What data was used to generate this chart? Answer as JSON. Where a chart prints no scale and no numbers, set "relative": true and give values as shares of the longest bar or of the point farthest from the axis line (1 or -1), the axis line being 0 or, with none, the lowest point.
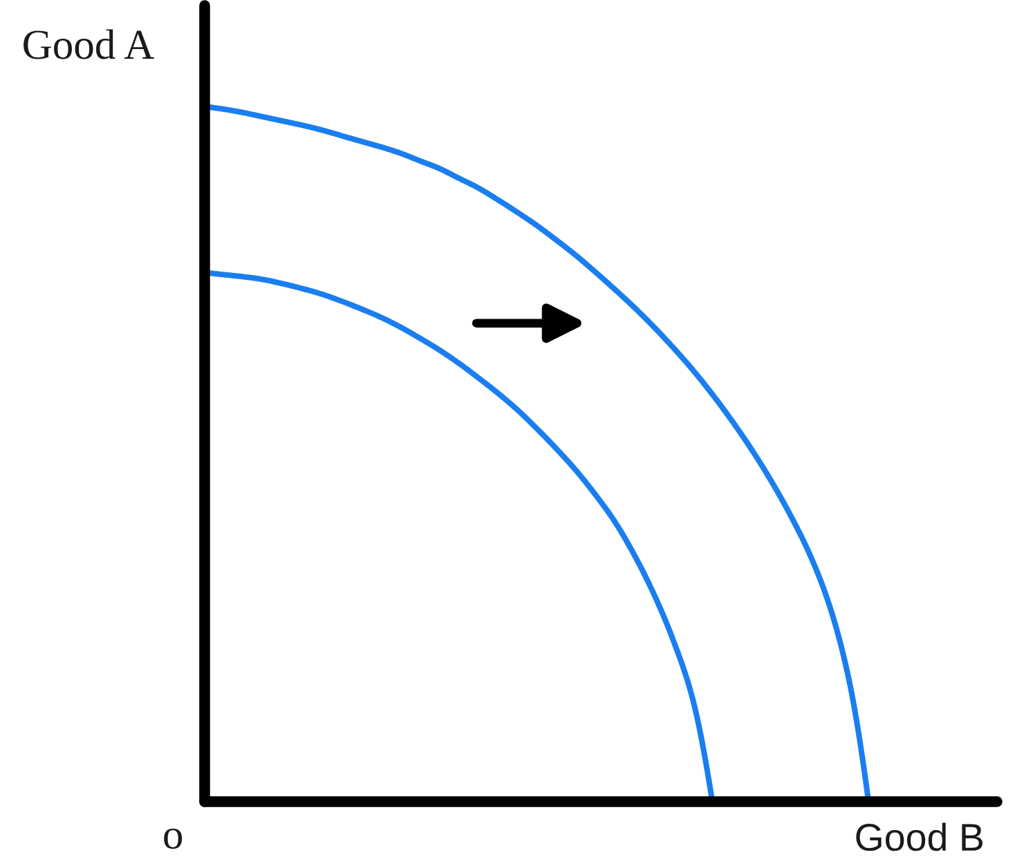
{
  "chart_data": {
    "type": "line",
    "relative": true,
    "xlabel": "Good B",
    "ylabel": "Good A",
    "annotations": [
      "o"
    ],
    "categories": [
      null,
      null,
      null,
      null,
      null,
      null,
      null,
      null,
      null,
      null,
      null,
      null,
      null,
      null,
      null,
      null,
      null,
      null,
      null,
      null,
      null,
      null,
      null,
      null,
      null,
      null,
      null,
      null,
      null,
      null,
      null,
      null,
      null,
      null,
      null,
      null,
      null,
      null,
      null,
      null,
      null
    ],
    "series": [
      {
        "color": "#1a7ef0",
        "values": [
          1,
          0.996,
          0.991,
          0.985,
          0.979,
          0.973,
          0.966,
          0.958,
          0.95,
          0.942,
          0.933,
          0.922,
          0.911,
          0.897,
          0.883,
          0.866,
          0.848,
          0.829,
          0.808,
          0.786,
          0.762,
          0.737,
          0.711,
          0.683,
          0.653,
          0.621,
          0.586,
          0.548,
          0.507,
          0.462,
          0.412,
          0.355,
          0.282,
          0.175,
          0,
          null,
          null,
          null,
          null,
          null,
          null
        ]
      },
      {
        "color": "#1a7ef0",
        "values": [
          0.761,
          0.758,
          0.755,
          0.751,
          0.745,
          0.738,
          0.73,
          0.72,
          0.709,
          0.697,
          0.683,
          0.667,
          0.65,
          0.631,
          0.61,
          0.588,
          0.564,
          0.537,
          0.508,
          0.477,
          0.442,
          0.403,
          0.355,
          0.299,
          0.232,
          0.147,
          0,
          null,
          null,
          null,
          null,
          null,
          null,
          null,
          null,
          null,
          null,
          null,
          null,
          null,
          null
        ]
      }
    ]
  }
}
